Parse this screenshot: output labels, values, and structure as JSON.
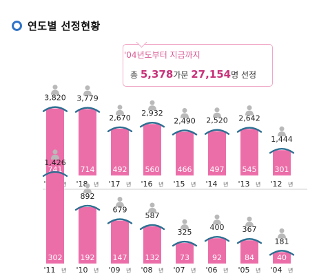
{
  "header": {
    "title": "연도별 선정현황"
  },
  "callout": {
    "line1": "'04년도부터 지금까지",
    "prefix": "총 ",
    "households": "5,378",
    "households_unit": "가문 ",
    "people": "27,154",
    "people_unit": "명 선정"
  },
  "colors": {
    "bar": "#ec6ea9",
    "accent": "#2f74c8",
    "callout_border": "#f0a6c6",
    "person_icon": "#b9b9b9"
  },
  "chart_data": {
    "type": "bar",
    "title": "연도별 선정현황",
    "value_meaning": {
      "label_above_bar": "people selected",
      "label_in_bar": "households selected"
    },
    "rows": [
      {
        "categories": [
          "'19",
          "'18",
          "'17",
          "'16",
          "'15",
          "'14",
          "'13",
          "'12"
        ],
        "people": [
          3820,
          3779,
          2670,
          2932,
          2490,
          2520,
          2642,
          1444
        ],
        "people_labels": [
          "3,820",
          "3,779",
          "2,670",
          "2,932",
          "2,490",
          "2,520",
          "2,642",
          "1,444"
        ],
        "households": [
          741,
          714,
          492,
          560,
          466,
          497,
          545,
          301
        ]
      },
      {
        "categories": [
          "'11",
          "'10",
          "'09",
          "'08",
          "'07",
          "'06",
          "'05",
          "'04"
        ],
        "people": [
          1426,
          892,
          679,
          587,
          325,
          400,
          367,
          181
        ],
        "people_labels": [
          "1,426",
          "892",
          "679",
          "587",
          "325",
          "400",
          "367",
          "181"
        ],
        "households": [
          302,
          192,
          147,
          132,
          73,
          92,
          84,
          40
        ]
      }
    ],
    "year_suffix": "년"
  }
}
